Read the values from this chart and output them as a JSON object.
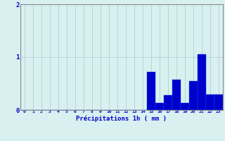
{
  "hours": [
    0,
    1,
    2,
    3,
    4,
    5,
    6,
    7,
    8,
    9,
    10,
    11,
    12,
    13,
    14,
    15,
    16,
    17,
    18,
    19,
    20,
    21,
    22,
    23
  ],
  "values": [
    0,
    0,
    0,
    0,
    0,
    0,
    0,
    0,
    0,
    0,
    0,
    0,
    0,
    0,
    0,
    0.72,
    0.13,
    0.28,
    0.58,
    0.14,
    0.55,
    1.05,
    0.3,
    0.3
  ],
  "bar_color": "#0000cc",
  "bar_edge_color": "#0055dd",
  "background_color": "#d8f0f0",
  "grid_color": "#aacccc",
  "axis_color": "#888888",
  "text_color": "#0000cc",
  "xlabel": "Précipitations 1h ( mm )",
  "ylim": [
    0,
    2
  ],
  "yticks": [
    0,
    1,
    2
  ],
  "xlim": [
    -0.5,
    23.5
  ]
}
